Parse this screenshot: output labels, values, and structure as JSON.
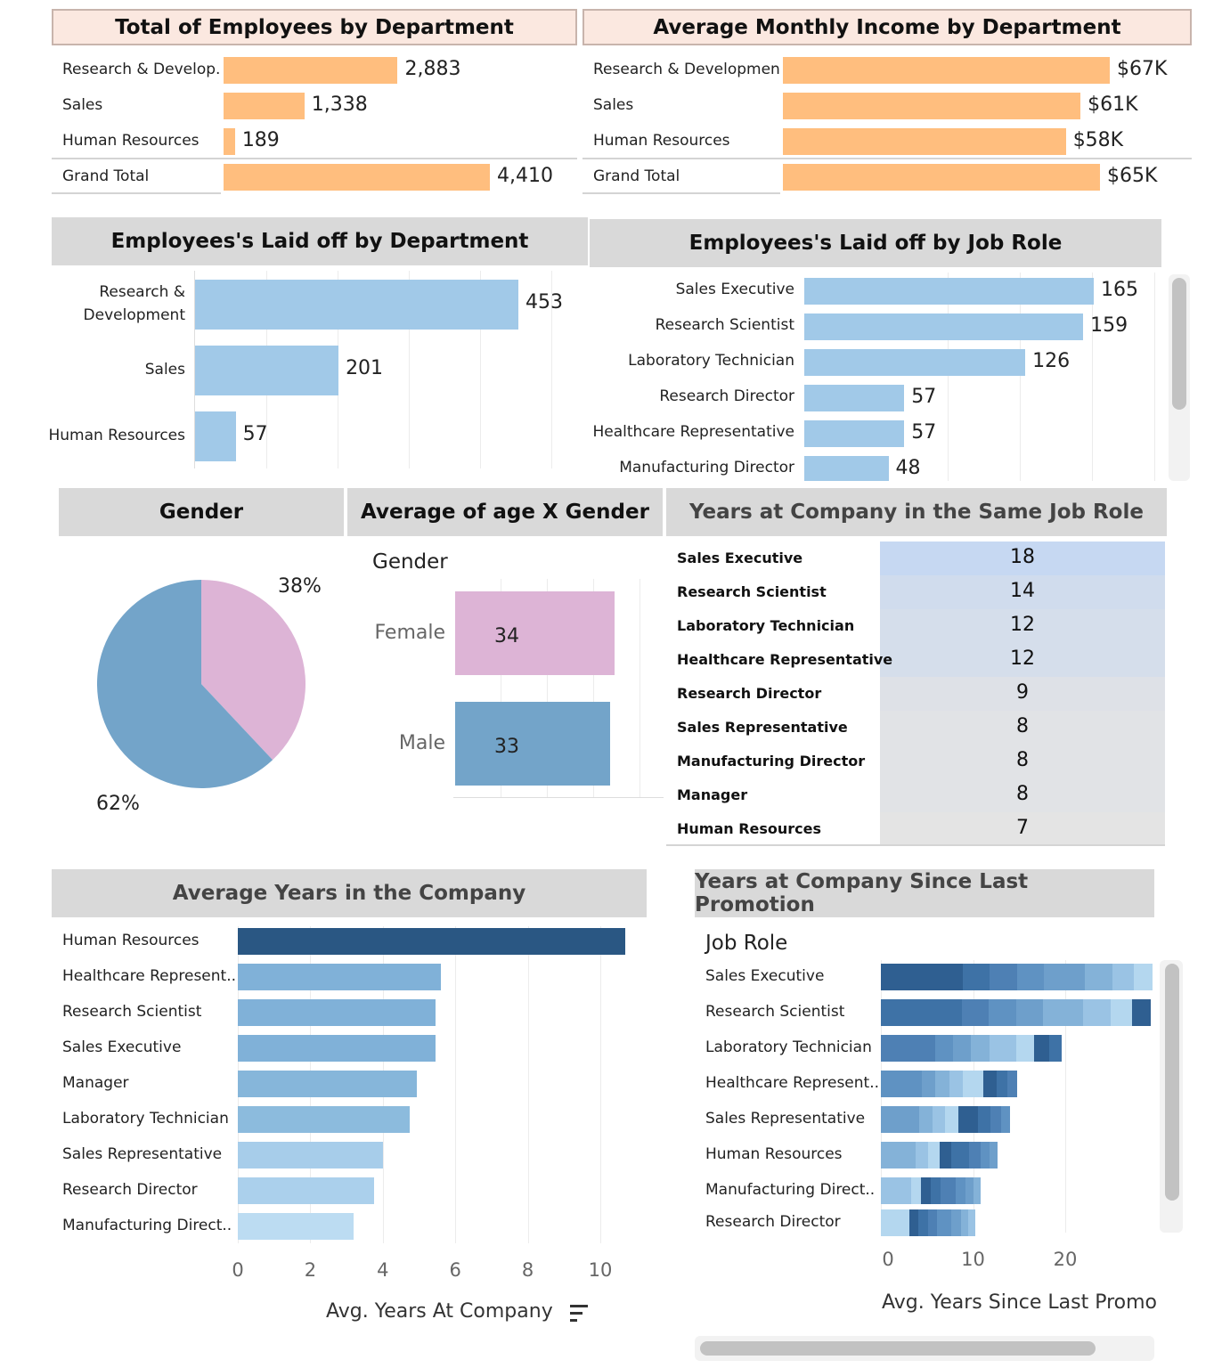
{
  "colors": {
    "peach_bar": "#ffbe7e",
    "light_blue_bar": "#a1c9e8",
    "female": "#ddb4d6",
    "male": "#73a4c9",
    "header_grey": "#d9d9d9",
    "header_peach": "#fbe8e0",
    "dark_blue": "#2a5783"
  },
  "chart_data": [
    {
      "id": "employees_by_dept",
      "type": "bar",
      "title": "Total of Employees by Department",
      "categories": [
        "Research & Develop..",
        "Sales",
        "Human Resources",
        "Grand Total"
      ],
      "values": [
        2883,
        1338,
        189,
        4410
      ],
      "value_labels": [
        "2,883",
        "1,338",
        "189",
        "4,410"
      ],
      "xlim": [
        0,
        4410
      ]
    },
    {
      "id": "income_by_dept",
      "type": "bar",
      "title": "Average Monthly Income by Department",
      "categories": [
        "Research & Development",
        "Sales",
        "Human Resources",
        "Grand Total"
      ],
      "values": [
        67,
        61,
        58,
        65
      ],
      "value_labels": [
        "$67K",
        "$61K",
        "$58K",
        "$65K"
      ],
      "xlim": [
        0,
        67
      ]
    },
    {
      "id": "laid_off_by_dept",
      "type": "bar",
      "title": "Employees's Laid off by Department",
      "categories": [
        "Research & Development",
        "Sales",
        "Human Resources"
      ],
      "category_lines": [
        [
          "Research &",
          "Development"
        ],
        [
          "Sales"
        ],
        [
          "Human Resources"
        ]
      ],
      "values": [
        453,
        201,
        57
      ],
      "value_labels": [
        "453",
        "201",
        "57"
      ],
      "xlim": [
        0,
        500
      ]
    },
    {
      "id": "laid_off_by_role",
      "type": "bar",
      "title": "Employees's Laid off by Job Role",
      "categories": [
        "Sales Executive",
        "Research Scientist",
        "Laboratory Technician",
        "Research Director",
        "Healthcare Representative",
        "Manufacturing Director"
      ],
      "values": [
        165,
        159,
        126,
        57,
        57,
        48
      ],
      "value_labels": [
        "165",
        "159",
        "126",
        "57",
        "57",
        "48"
      ],
      "xlim": [
        0,
        200
      ]
    },
    {
      "id": "gender_pie",
      "type": "pie",
      "title": "Gender",
      "slices": [
        {
          "label": "38%",
          "value": 38,
          "color": "#ddb4d6"
        },
        {
          "label": "62%",
          "value": 62,
          "color": "#73a4c9"
        }
      ]
    },
    {
      "id": "age_by_gender",
      "type": "bar",
      "title": "Average of age X Gender",
      "ylabel": "Gender",
      "categories": [
        "Female",
        "Male"
      ],
      "values": [
        34,
        33
      ],
      "value_labels": [
        "34",
        "33"
      ],
      "xlim": [
        0,
        40
      ]
    },
    {
      "id": "years_same_role",
      "type": "table",
      "title": "Years at Company in the Same Job Role",
      "rows": [
        {
          "role": "Sales Executive",
          "value": "18"
        },
        {
          "role": "Research Scientist",
          "value": "14"
        },
        {
          "role": "Laboratory Technician",
          "value": "12"
        },
        {
          "role": "Healthcare Representative",
          "value": "12"
        },
        {
          "role": "Research Director",
          "value": "9"
        },
        {
          "role": "Sales Representative",
          "value": "8"
        },
        {
          "role": "Manufacturing Director",
          "value": "8"
        },
        {
          "role": "Manager",
          "value": "8"
        },
        {
          "role": "Human Resources",
          "value": "7"
        }
      ]
    },
    {
      "id": "avg_years_company",
      "type": "bar",
      "title": "Average Years in the Company",
      "xlabel": "Avg. Years At Company",
      "categories": [
        "Human Resources",
        "Healthcare Represent..",
        "Research Scientist",
        "Sales Executive",
        "Manager",
        "Laboratory Technician",
        "Sales Representative",
        "Research Director",
        "Manufacturing Direct.."
      ],
      "values": [
        10.7,
        5.6,
        5.45,
        5.45,
        4.95,
        4.75,
        4.0,
        3.75,
        3.2
      ],
      "xticks": [
        "0",
        "2",
        "4",
        "6",
        "8",
        "10"
      ],
      "xlim": [
        0,
        11
      ]
    },
    {
      "id": "since_promotion",
      "type": "bar",
      "title": "Years at Company  Since Last Promotion",
      "ylabel": "Job Role",
      "xlabel": "Avg. Years Since Last Promo",
      "categories": [
        "Sales Executive",
        "Research Scientist",
        "Laboratory Technician",
        "Healthcare Represent..",
        "Sales Representative",
        "Human Resources",
        "Manufacturing Direct..",
        "Research Director"
      ],
      "values": [
        29.5,
        29.3,
        19.6,
        14.8,
        14.0,
        12.7,
        10.8,
        10.2
      ],
      "xticks": [
        "0",
        "10",
        "20"
      ],
      "xlim": [
        0,
        30
      ]
    }
  ]
}
